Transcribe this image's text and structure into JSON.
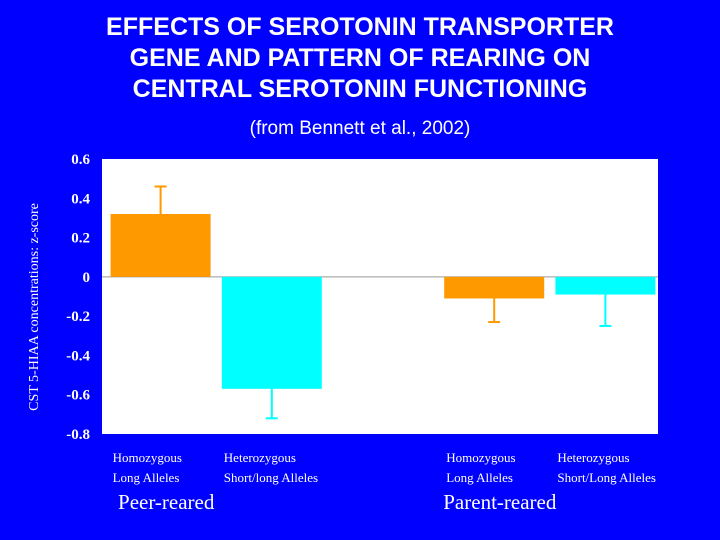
{
  "chart_data": {
    "type": "bar",
    "title_lines": [
      "EFFECTS OF SEROTONIN TRANSPORTER",
      "GENE AND PATTERN OF REARING ON",
      "CENTRAL SEROTONIN FUNCTIONING"
    ],
    "subtitle": "(from Bennett et al., 2002)",
    "ylabel": "CST 5-HIAA concentrations: z-score",
    "ylim": [
      -0.8,
      0.6
    ],
    "yticks": [
      0.6,
      0.4,
      0.2,
      0,
      -0.2,
      -0.4,
      -0.6,
      -0.8
    ],
    "ytick_labels": [
      "0.6",
      "0.4",
      "0.2",
      "0",
      "-0.2",
      "-0.4",
      "-0.6",
      "-0.8"
    ],
    "categories": [
      {
        "line1": "Homozygous",
        "line2": "Long Alleles"
      },
      {
        "line1": "Heterozygous",
        "line2": "Short/long Alleles"
      },
      {
        "line1": "Homozygous",
        "line2": "Long Alleles"
      },
      {
        "line1": "Heterozygous",
        "line2": "Short/Long Alleles"
      }
    ],
    "groups": [
      "Peer-reared",
      "Parent-reared"
    ],
    "values": [
      0.32,
      -0.57,
      -0.11,
      -0.09
    ],
    "errors": [
      0.14,
      0.15,
      0.12,
      0.16
    ],
    "colors": [
      "#ff9900",
      "#00ffff",
      "#ff9900",
      "#00ffff"
    ],
    "errorbar_colors": [
      "#ff9900",
      "#00ffff",
      "#ff9900",
      "#00ffff"
    ]
  },
  "colors": {
    "background": "#0000ff",
    "plot_background": "#ffffff",
    "text": "#ffffff"
  }
}
